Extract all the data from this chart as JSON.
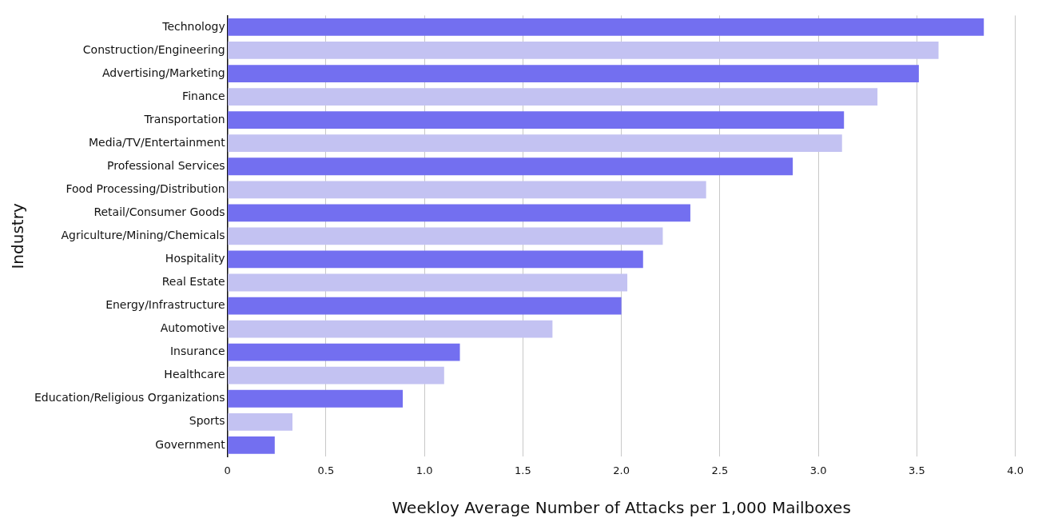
{
  "chart_data": {
    "type": "bar",
    "orientation": "horizontal",
    "xlabel": "Weekloy Average Number of Attacks per 1,000 Mailboxes",
    "ylabel": "Industry",
    "categories": [
      "Technology",
      "Construction/Engineering",
      "Advertising/Marketing",
      "Finance",
      "Transportation",
      "Media/TV/Entertainment",
      "Professional Services",
      "Food Processing/Distribution",
      "Retail/Consumer Goods",
      "Agriculture/Mining/Chemicals",
      "Hospitality",
      "Real Estate",
      "Energy/Infrastructure",
      "Automotive",
      "Insurance",
      "Healthcare",
      "Education/Religious Organizations",
      "Sports",
      "Government"
    ],
    "values": [
      3.84,
      3.61,
      3.51,
      3.3,
      3.13,
      3.12,
      2.87,
      2.43,
      2.35,
      2.21,
      2.11,
      2.03,
      2.0,
      1.65,
      1.18,
      1.1,
      0.89,
      0.33,
      0.24
    ],
    "colors": [
      "#736ff0",
      "#c3c2f2",
      "#736ff0",
      "#c3c2f2",
      "#736ff0",
      "#c3c2f2",
      "#736ff0",
      "#c3c2f2",
      "#736ff0",
      "#c3c2f2",
      "#736ff0",
      "#c3c2f2",
      "#736ff0",
      "#c3c2f2",
      "#736ff0",
      "#c3c2f2",
      "#736ff0",
      "#c3c2f2",
      "#736ff0"
    ],
    "xlim": [
      0,
      4
    ],
    "xticks": [
      0,
      0.5,
      {
        "value": 1,
        "label": "1.0"
      },
      1.5,
      {
        "value": 2,
        "label": "2.0"
      },
      2.5,
      {
        "value": 3,
        "label": "3.0"
      },
      3.5,
      {
        "value": 4,
        "label": "4.0"
      }
    ],
    "grid": "x",
    "legend": false
  }
}
